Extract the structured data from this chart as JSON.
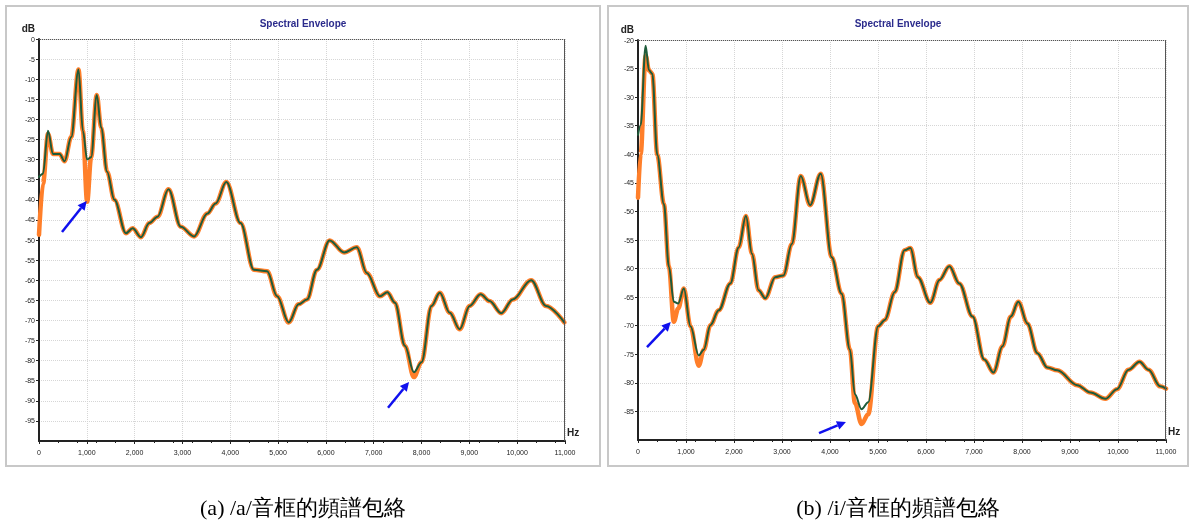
{
  "chart_data": [
    {
      "type": "line",
      "title": "Spectral Envelope",
      "xlabel": "Hz",
      "ylabel": "dB",
      "annotations": [
        "(a) /a/音框的頻譜包絡"
      ],
      "xlim": [
        0,
        11000
      ],
      "xticks": [
        0,
        {
          "value": 1000,
          "label": "1,000"
        },
        {
          "value": 2000,
          "label": "2,000"
        },
        {
          "value": 3000,
          "label": "3,000"
        },
        {
          "value": 4000,
          "label": "4,000"
        },
        {
          "value": 5000,
          "label": "5,000"
        },
        {
          "value": 6000,
          "label": "6,000"
        },
        {
          "value": 7000,
          "label": "7,000"
        },
        {
          "value": 8000,
          "label": "8,000"
        },
        {
          "value": 9000,
          "label": "9,000"
        },
        {
          "value": 10000,
          "label": "10,000"
        },
        {
          "value": 11000,
          "label": "11,000"
        }
      ],
      "ylim": [
        -100,
        0
      ],
      "yticks": [
        0,
        -5,
        -10,
        -15,
        -20,
        -25,
        -30,
        -35,
        -40,
        -45,
        -50,
        -55,
        -60,
        -65,
        -70,
        -75,
        -80,
        -85,
        -90,
        -95
      ],
      "grid": true,
      "marker": "none",
      "line_style": "solid",
      "series": [
        {
          "color": "#ff7f2a",
          "x": [
            0,
            83,
            188,
            292,
            430,
            535,
            674,
            826,
            917,
            1007,
            1090,
            1208,
            1299,
            1424,
            1576,
            1819,
            1958,
            2132,
            2306,
            2479,
            2708,
            2965,
            3243,
            3521,
            3694,
            3917,
            4215,
            4493,
            4771,
            4979,
            5222,
            5429,
            5604,
            5813,
            6077,
            6381,
            6646,
            6854,
            7131,
            7284,
            7444,
            7652,
            7840,
            8000,
            8208,
            8381,
            8590,
            8798,
            9006,
            9235,
            9423,
            9667,
            9909,
            10292,
            10604,
            10985
          ],
          "values": [
            -48.7,
            -36,
            -23.6,
            -28.6,
            -28.6,
            -30.4,
            -24.4,
            -7.6,
            -22.8,
            -40.5,
            -29.4,
            -13.9,
            -22,
            -33,
            -40,
            -48.3,
            -47.1,
            -49.3,
            -45.8,
            -44.2,
            -37.4,
            -46.7,
            -49.1,
            -43.4,
            -40.9,
            -35.6,
            -45.8,
            -57.4,
            -57.8,
            -64,
            -70.5,
            -66,
            -64.8,
            -57.4,
            -50.1,
            -53.1,
            -51.8,
            -58.2,
            -64,
            -63,
            -65.6,
            -76.3,
            -84.1,
            -80.4,
            -66.4,
            -63.1,
            -68.1,
            -72.2,
            -66.4,
            -63.5,
            -65.2,
            -68.2,
            -64.8,
            -60,
            -66.4,
            -70.5
          ]
        },
        {
          "color": "#1e5b3a",
          "x": [
            0,
            83,
            188,
            292,
            430,
            535,
            674,
            826,
            917,
            1007,
            1090,
            1208,
            1299,
            1424,
            1576,
            1819,
            1958,
            2132,
            2306,
            2479,
            2708,
            2965,
            3243,
            3521,
            3694,
            3917,
            4215,
            4493,
            4771,
            4979,
            5222,
            5429,
            5604,
            5813,
            6077,
            6381,
            6646,
            6854,
            7131,
            7284,
            7444,
            7652,
            7840,
            8000,
            8208,
            8381,
            8590,
            8798,
            9006,
            9235,
            9423,
            9667,
            9909,
            10292,
            10604,
            10985
          ],
          "values": [
            -34.3,
            -33.5,
            -22.8,
            -28.6,
            -28.6,
            -30.4,
            -24.4,
            -7.6,
            -22.8,
            -30,
            -29.4,
            -13.9,
            -22,
            -33,
            -40,
            -48.3,
            -47.1,
            -49.3,
            -45.8,
            -44.2,
            -37.4,
            -46.7,
            -49.1,
            -43.4,
            -40.9,
            -35.6,
            -45.8,
            -57.4,
            -57.8,
            -64,
            -70.5,
            -66,
            -64.8,
            -57.4,
            -50.1,
            -53.1,
            -51.8,
            -58.2,
            -64,
            -63,
            -65.6,
            -76.3,
            -82.9,
            -80.4,
            -66.4,
            -63.1,
            -68.1,
            -72.2,
            -66.4,
            -63.5,
            -65.2,
            -68.2,
            -64.8,
            -60,
            -66.4,
            -70.5
          ]
        }
      ]
    },
    {
      "type": "line",
      "title": "Spectral Envelope",
      "xlabel": "Hz",
      "ylabel": "dB",
      "annotations": [
        "(b) /i/音框的頻譜包絡"
      ],
      "xlim": [
        0,
        11000
      ],
      "xticks": [
        0,
        {
          "value": 1000,
          "label": "1,000"
        },
        {
          "value": 2000,
          "label": "2,000"
        },
        {
          "value": 3000,
          "label": "3,000"
        },
        {
          "value": 4000,
          "label": "4,000"
        },
        {
          "value": 5000,
          "label": "5,000"
        },
        {
          "value": 6000,
          "label": "6,000"
        },
        {
          "value": 7000,
          "label": "7,000"
        },
        {
          "value": 8000,
          "label": "8,000"
        },
        {
          "value": 9000,
          "label": "9,000"
        },
        {
          "value": 10000,
          "label": "10,000"
        },
        {
          "value": 11000,
          "label": "11,000"
        }
      ],
      "ylim": [
        -90,
        -20
      ],
      "yticks": [
        -20,
        -25,
        -30,
        -35,
        -40,
        -45,
        -50,
        -55,
        -60,
        -65,
        -70,
        -75,
        -80,
        -85
      ],
      "grid": true,
      "marker": "none",
      "line_style": "solid",
      "series": [
        {
          "color": "#ff7f2a",
          "x": [
            0,
            55,
            159,
            228,
            298,
            401,
            540,
            644,
            747,
            837,
            955,
            1093,
            1266,
            1370,
            1509,
            1682,
            1924,
            2097,
            2249,
            2374,
            2512,
            2651,
            2858,
            3031,
            3204,
            3391,
            3585,
            3806,
            4035,
            4242,
            4415,
            4519,
            4657,
            4796,
            5003,
            5142,
            5349,
            5552,
            5676,
            5830,
            6091,
            6279,
            6486,
            6693,
            6970,
            7212,
            7407,
            7593,
            7766,
            7925,
            8112,
            8320,
            8527,
            8734,
            9149,
            9426,
            9737,
            9979,
            10220,
            10448,
            10635,
            10878,
            11000
          ],
          "values": [
            -47.6,
            -40,
            -22.7,
            -25.3,
            -25.9,
            -40.1,
            -48.7,
            -59.7,
            -69.3,
            -67,
            -63.5,
            -70.1,
            -77,
            -74.2,
            -69.9,
            -67.3,
            -62.6,
            -56.3,
            -50.8,
            -57.4,
            -63.8,
            -65.2,
            -61.5,
            -61.2,
            -55.7,
            -43.8,
            -48.9,
            -43.4,
            -58,
            -64.4,
            -74.2,
            -83.5,
            -87.2,
            -85.5,
            -70.1,
            -69,
            -64.1,
            -56.8,
            -56.4,
            -61.5,
            -66,
            -62,
            -59.6,
            -62.6,
            -68.4,
            -75.9,
            -78.2,
            -73.6,
            -68.4,
            -65.8,
            -69.6,
            -74.8,
            -77.3,
            -77.8,
            -80.4,
            -81.7,
            -82.8,
            -81.1,
            -77.7,
            -76.3,
            -77.7,
            -80.6,
            -81
          ]
        },
        {
          "color": "#1e5b3a",
          "x": [
            0,
            55,
            159,
            228,
            298,
            401,
            540,
            644,
            747,
            837,
            955,
            1093,
            1266,
            1370,
            1509,
            1682,
            1924,
            2097,
            2249,
            2374,
            2512,
            2651,
            2858,
            3031,
            3204,
            3391,
            3585,
            3806,
            4035,
            4242,
            4415,
            4519,
            4657,
            4796,
            5003,
            5142,
            5349,
            5552,
            5676,
            5830,
            6091,
            6279,
            6486,
            6693,
            6970,
            7212,
            7407,
            7593,
            7766,
            7925,
            8112,
            8320,
            8527,
            8734,
            9149,
            9426,
            9737,
            9979,
            10220,
            10448,
            10635,
            10878,
            11000
          ],
          "values": [
            -36.6,
            -34.9,
            -21,
            -25.3,
            -25.9,
            -40.1,
            -48.7,
            -59.7,
            -65.8,
            -66.1,
            -63.5,
            -70.1,
            -75.2,
            -74.2,
            -69.9,
            -67.3,
            -62.6,
            -56.3,
            -50.8,
            -57.4,
            -63.8,
            -65.2,
            -61.5,
            -61.2,
            -55.7,
            -43.8,
            -48.9,
            -43.4,
            -58,
            -64.4,
            -74.2,
            -82,
            -84.6,
            -83.4,
            -70.1,
            -69,
            -64.1,
            -56.8,
            -56.4,
            -61.5,
            -66,
            -62,
            -59.6,
            -62.6,
            -68.4,
            -75.9,
            -78.2,
            -73.6,
            -68.4,
            -65.8,
            -69.6,
            -74.8,
            -77.3,
            -77.8,
            -80.4,
            -81.7,
            -82.8,
            -81.1,
            -77.7,
            -76.3,
            -77.7,
            -80.6,
            -81
          ]
        }
      ]
    }
  ]
}
